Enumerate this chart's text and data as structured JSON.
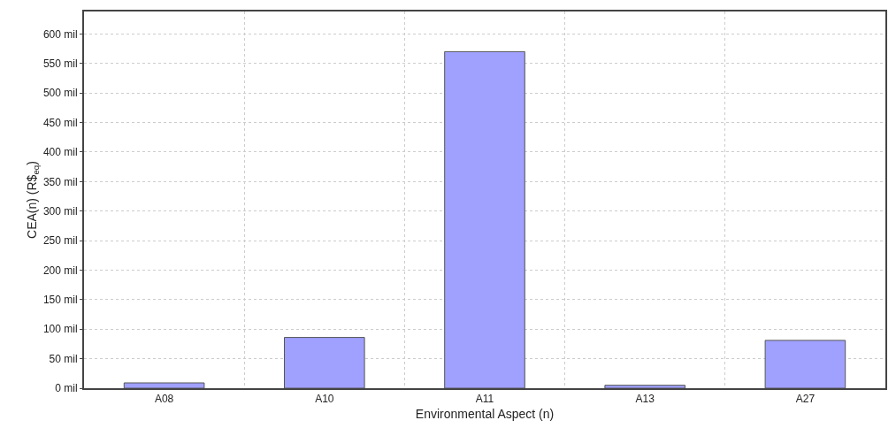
{
  "chart_data": {
    "type": "bar",
    "xlabel": "Environmental Aspect (n)",
    "ylabel": "CEA(n) (R$$_{eq}$)",
    "categories": [
      "A08",
      "A10",
      "A11",
      "A13",
      "A27"
    ],
    "values": [
      9,
      86,
      570,
      5,
      81
    ],
    "color": "#a0a0ff",
    "ylim": [
      0,
      638
    ],
    "yticks": [
      {
        "value": 0,
        "label": "0 mil"
      },
      {
        "value": 50,
        "label": "50 mil"
      },
      {
        "value": 100,
        "label": "100 mil"
      },
      {
        "value": 150,
        "label": "150 mil"
      },
      {
        "value": 200,
        "label": "200 mil"
      },
      {
        "value": 250,
        "label": "250 mil"
      },
      {
        "value": 300,
        "label": "300 mil"
      },
      {
        "value": 350,
        "label": "350 mil"
      },
      {
        "value": 400,
        "label": "400 mil"
      },
      {
        "value": 450,
        "label": "450 mil"
      },
      {
        "value": 500,
        "label": "500 mil"
      },
      {
        "value": 550,
        "label": "550 mil"
      },
      {
        "value": 600,
        "label": "600 mil"
      }
    ],
    "grid": true
  }
}
